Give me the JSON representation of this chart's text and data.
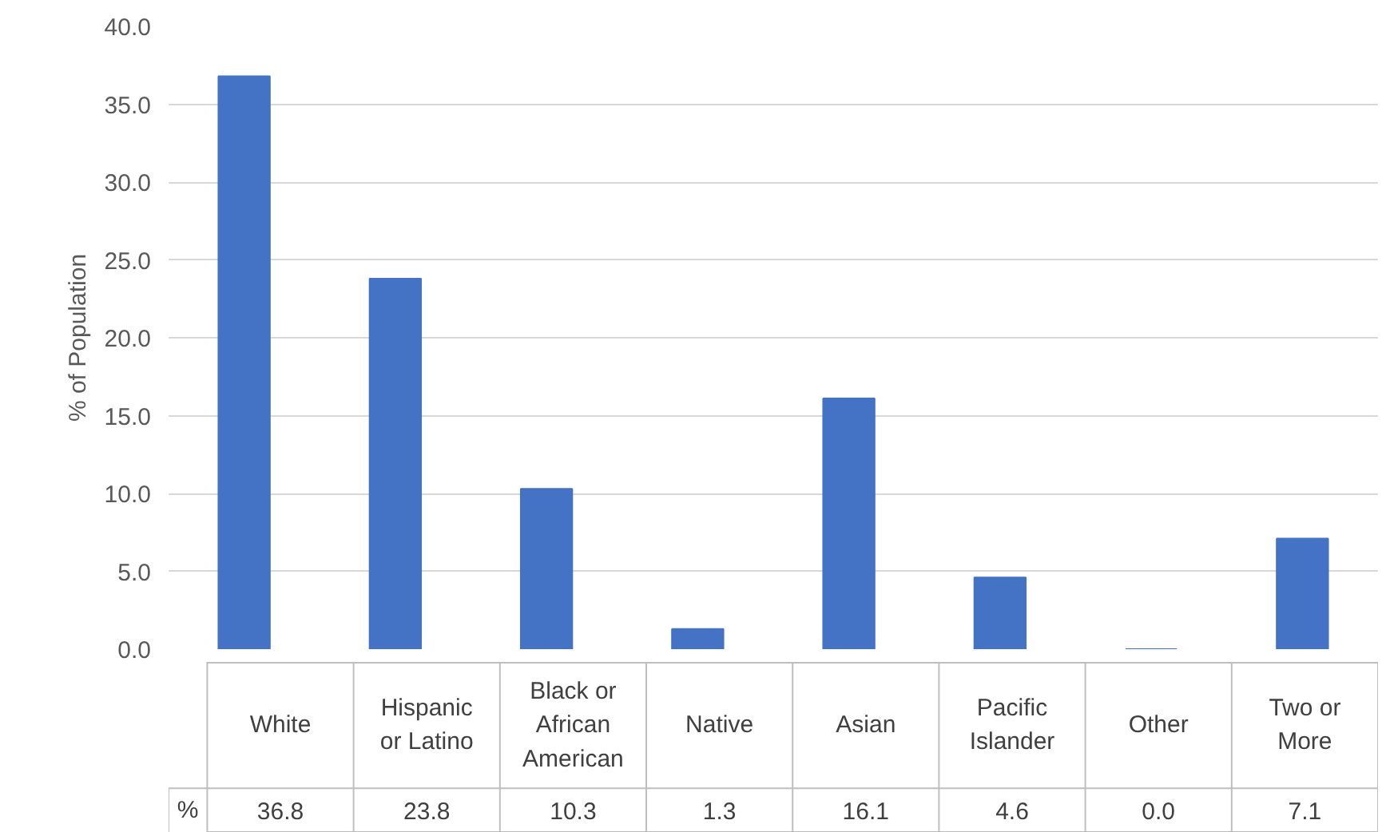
{
  "chart_data": {
    "type": "bar",
    "ylabel": "% of Population",
    "categories": [
      "White",
      "Hispanic or Latino",
      "Black or African American",
      "Native",
      "Asian",
      "Pacific Islander",
      "Other",
      "Two or More"
    ],
    "series": [
      {
        "name": "%",
        "color": "#4472c4",
        "values": [
          36.8,
          23.8,
          10.3,
          1.3,
          16.1,
          4.6,
          0.0,
          7.1
        ],
        "value_labels": [
          "36.8",
          "23.8",
          "10.3",
          "1.3",
          "16.1",
          "4.6",
          "0.0",
          "7.1"
        ]
      }
    ],
    "ylim": [
      0,
      40
    ],
    "yticks": [
      {
        "value": 0,
        "label": "0.0"
      },
      {
        "value": 5,
        "label": "5.0"
      },
      {
        "value": 10,
        "label": "10.0"
      },
      {
        "value": 15,
        "label": "15.0"
      },
      {
        "value": 20,
        "label": "20.0"
      },
      {
        "value": 25,
        "label": "25.0"
      },
      {
        "value": 30,
        "label": "30.0"
      },
      {
        "value": 35,
        "label": "35.0"
      },
      {
        "value": 40,
        "label": "40.0"
      }
    ],
    "grid": "y",
    "legend": false
  }
}
